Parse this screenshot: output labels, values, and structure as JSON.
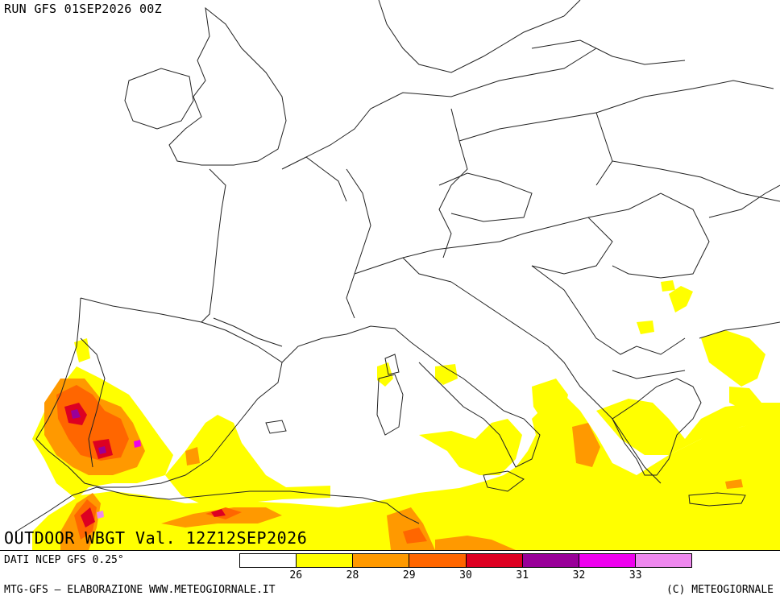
{
  "header": {
    "run_label": "RUN GFS 01SEP2026 00Z"
  },
  "map": {
    "product_label": "OUTDOOR WBGT Val. 12Z12SEP2026",
    "colors": {
      "below_26": "#ffffff",
      "26_28": "#ffff00",
      "28_29": "#ff9900",
      "29_30": "#ff6600",
      "30_31": "#dd0022",
      "31_32": "#990099",
      "32_33": "#ee00ee",
      "33_plus": "#ee88ee",
      "border": "#222222"
    }
  },
  "legend": {
    "source_label": "DATI NCEP GFS 0.25°",
    "classes": [
      {
        "color": "#ffffff"
      },
      {
        "color": "#ffff00"
      },
      {
        "color": "#ff9900"
      },
      {
        "color": "#ff6600"
      },
      {
        "color": "#dd0022"
      },
      {
        "color": "#990099"
      },
      {
        "color": "#ee00ee"
      },
      {
        "color": "#ee88ee"
      }
    ],
    "ticks": [
      "26",
      "28",
      "29",
      "30",
      "31",
      "32",
      "33"
    ]
  },
  "footer": {
    "left": "MTG-GFS — ELABORAZIONE WWW.METEOGIORNALE.IT",
    "right": "(C) METEOGIORNALE"
  }
}
